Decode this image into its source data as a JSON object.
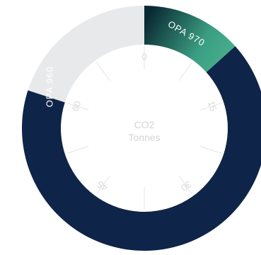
{
  "chart_data": {
    "type": "pie",
    "variant": "donut",
    "title": "",
    "center_label": [
      "CO2",
      "Tonnes"
    ],
    "scale": {
      "min": 0,
      "max": 75,
      "ticks": [
        0,
        15,
        30,
        45,
        60
      ]
    },
    "series": [
      {
        "name": "OPA 970",
        "values": [
          10
        ]
      },
      {
        "name": "OPA 960",
        "values": [
          50
        ]
      }
    ],
    "remainder": 15,
    "colors": {
      "OPA 970": [
        "#0a2a33",
        "#3b9e82",
        "#4fb891"
      ],
      "OPA 960": "#0e2448",
      "track": "#e8e9eb"
    },
    "grid": true,
    "legend": "none"
  }
}
